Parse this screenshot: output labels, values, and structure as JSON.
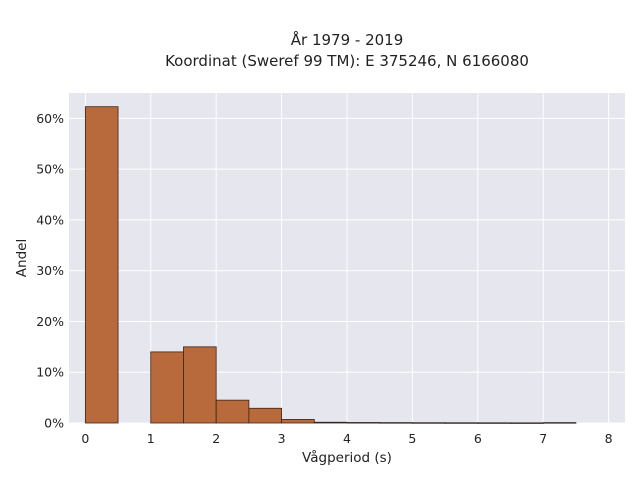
{
  "chart_data": {
    "type": "bar",
    "title_lines": [
      "År 1979 - 2019",
      "Koordinat (Sweref 99 TM): E 375246, N 6166080"
    ],
    "xlabel": "Vågperiod (s)",
    "ylabel": "Andel",
    "xlim": [
      -0.25,
      8.25
    ],
    "ylim": [
      0,
      0.65
    ],
    "x_ticks": [
      0,
      1,
      2,
      3,
      4,
      5,
      6,
      7,
      8
    ],
    "x_tick_labels": [
      "0",
      "1",
      "2",
      "3",
      "4",
      "5",
      "6",
      "7",
      "8"
    ],
    "y_ticks": [
      0,
      0.1,
      0.2,
      0.3,
      0.4,
      0.5,
      0.6
    ],
    "y_tick_labels": [
      "0%",
      "10%",
      "20%",
      "30%",
      "40%",
      "50%",
      "60%"
    ],
    "bin_width": 0.5,
    "bins": [
      {
        "start": 0.0,
        "value": 0.623
      },
      {
        "start": 0.5,
        "value": 0.0
      },
      {
        "start": 1.0,
        "value": 0.14
      },
      {
        "start": 1.5,
        "value": 0.15
      },
      {
        "start": 2.0,
        "value": 0.045
      },
      {
        "start": 2.5,
        "value": 0.029
      },
      {
        "start": 3.0,
        "value": 0.007
      },
      {
        "start": 3.5,
        "value": 0.0015
      },
      {
        "start": 4.0,
        "value": 0.001
      },
      {
        "start": 4.5,
        "value": 0.0008
      },
      {
        "start": 5.0,
        "value": 0.0006
      },
      {
        "start": 5.5,
        "value": 0.0005
      },
      {
        "start": 6.0,
        "value": 0.0004
      },
      {
        "start": 6.5,
        "value": 0.0003
      },
      {
        "start": 7.0,
        "value": 0.0008
      }
    ],
    "grid": true,
    "colors": {
      "bar_fill": "#b86a3c",
      "bar_edge": "#3a2414",
      "plot_bg": "#e6e6ee",
      "grid": "#ffffff"
    }
  }
}
